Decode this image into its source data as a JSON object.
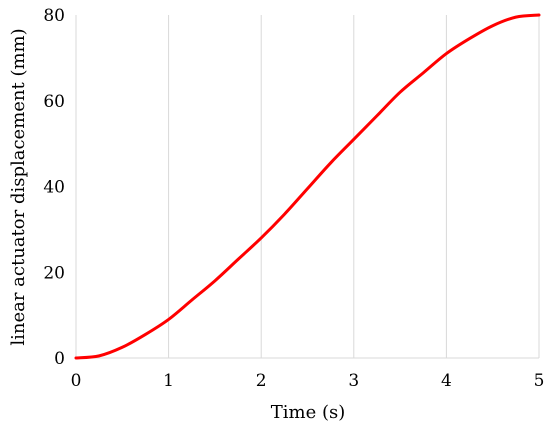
{
  "chart_data": {
    "type": "line",
    "title": "",
    "xlabel": "Time (s)",
    "ylabel": "linear actuator displacement (mm)",
    "xlim": [
      0,
      5
    ],
    "ylim": [
      0,
      80
    ],
    "x_ticks": [
      "0",
      "1",
      "2",
      "3",
      "4",
      "5"
    ],
    "y_ticks": [
      "0",
      "20",
      "40",
      "60",
      "80"
    ],
    "grid": "vertical",
    "legend": "none",
    "series": [
      {
        "color": "#ff0000",
        "x": [
          0,
          0.25,
          0.5,
          0.75,
          1,
          1.25,
          1.5,
          1.75,
          2,
          2.25,
          2.5,
          2.75,
          3,
          3.25,
          3.5,
          3.75,
          4,
          4.25,
          4.5,
          4.75,
          5
        ],
        "y": [
          0,
          0.5,
          2.5,
          5.5,
          9,
          13.5,
          18,
          23,
          28,
          33.5,
          39.5,
          45.5,
          51,
          56.5,
          62,
          66.5,
          71,
          74.5,
          77.5,
          79.5,
          80
        ]
      }
    ]
  }
}
